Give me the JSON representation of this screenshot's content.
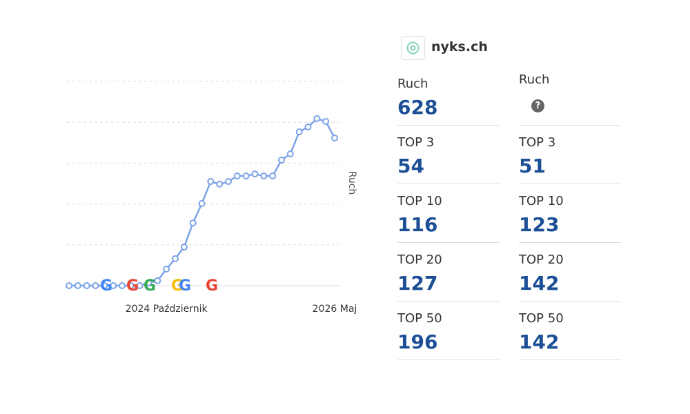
{
  "chart_data": {
    "type": "line",
    "y_label": "Ruch",
    "categories": [
      null,
      null,
      null,
      null,
      null,
      null,
      null,
      null,
      null,
      null,
      null,
      "2024 Październik",
      null,
      null,
      null,
      null,
      null,
      null,
      null,
      null,
      null,
      null,
      null,
      null,
      null,
      null,
      null,
      null,
      null,
      null,
      "2026 Maj"
    ],
    "series": [
      {
        "name": "Ruch",
        "color": "#7ba3e6",
        "values": [
          0,
          0,
          0,
          0,
          0,
          0,
          0,
          0,
          0,
          14,
          24,
          81,
          132,
          189,
          307,
          402,
          510,
          497,
          510,
          537,
          537,
          547,
          537,
          537,
          615,
          645,
          753,
          777,
          818,
          804,
          723
        ]
      }
    ],
    "ylim": [
      0,
      1000
    ],
    "grid_values": [
      0,
      200,
      400,
      600,
      800,
      1000
    ],
    "grid": true
  },
  "site": "nyks.ch",
  "stats": {
    "columns": [
      {
        "rows": [
          {
            "label": "Ruch",
            "value": 628
          },
          {
            "label": "TOP 3",
            "value": 54
          },
          {
            "label": "TOP 10",
            "value": 116
          },
          {
            "label": "TOP 20",
            "value": 127
          },
          {
            "label": "TOP 50",
            "value": 196
          }
        ]
      },
      {
        "rows": [
          {
            "label": "Ruch"
          },
          {
            "label": "TOP 3",
            "value": 51
          },
          {
            "label": "TOP 10",
            "value": 123
          },
          {
            "label": "TOP 20",
            "value": 142
          },
          {
            "label": "TOP 50",
            "value": 142
          }
        ]
      }
    ]
  }
}
